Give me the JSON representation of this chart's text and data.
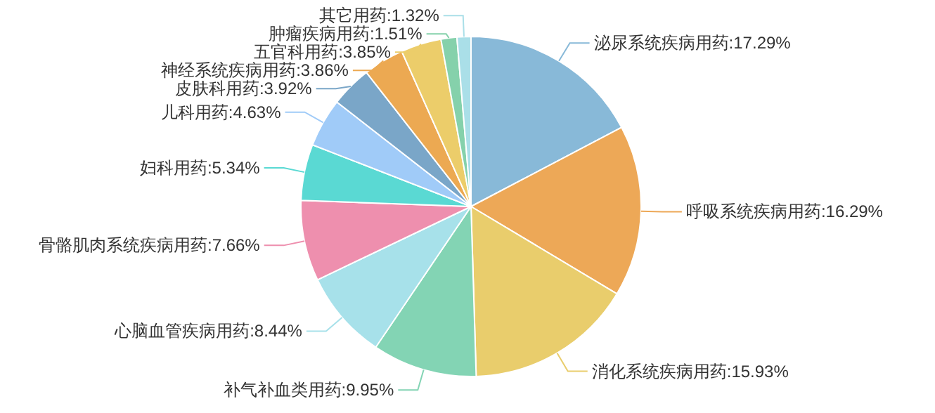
{
  "chart_data": {
    "type": "pie",
    "categories": [
      "泌尿系统疾病用药",
      "呼吸系统疾病用药",
      "消化系统疾病用药",
      "补气补血类用药",
      "心脑血管疾病用药",
      "骨骼肌肉系统疾病用药",
      "妇科用药",
      "儿科用药",
      "皮肤科用药",
      "神经系统疾病用药",
      "五官科用药",
      "肿瘤疾病用药",
      "其它用药"
    ],
    "values": [
      17.29,
      16.29,
      15.93,
      9.95,
      8.44,
      7.66,
      5.34,
      4.63,
      3.92,
      3.86,
      3.85,
      1.51,
      1.32
    ],
    "value_labels": [
      "17.29%",
      "16.29%",
      "15.93%",
      "9.95%",
      "8.44%",
      "7.66%",
      "5.34%",
      "4.63%",
      "3.92%",
      "3.86%",
      "3.85%",
      "1.51%",
      "1.32%"
    ],
    "colors": [
      "#88b9d8",
      "#eda857",
      "#e9cd6c",
      "#83d4b4",
      "#a7e1ea",
      "#ee8fae",
      "#5ad9d3",
      "#a0cbf8",
      "#7aa6c8",
      "#eca952",
      "#eccd6a",
      "#85d1ab",
      "#aadfe8"
    ]
  }
}
